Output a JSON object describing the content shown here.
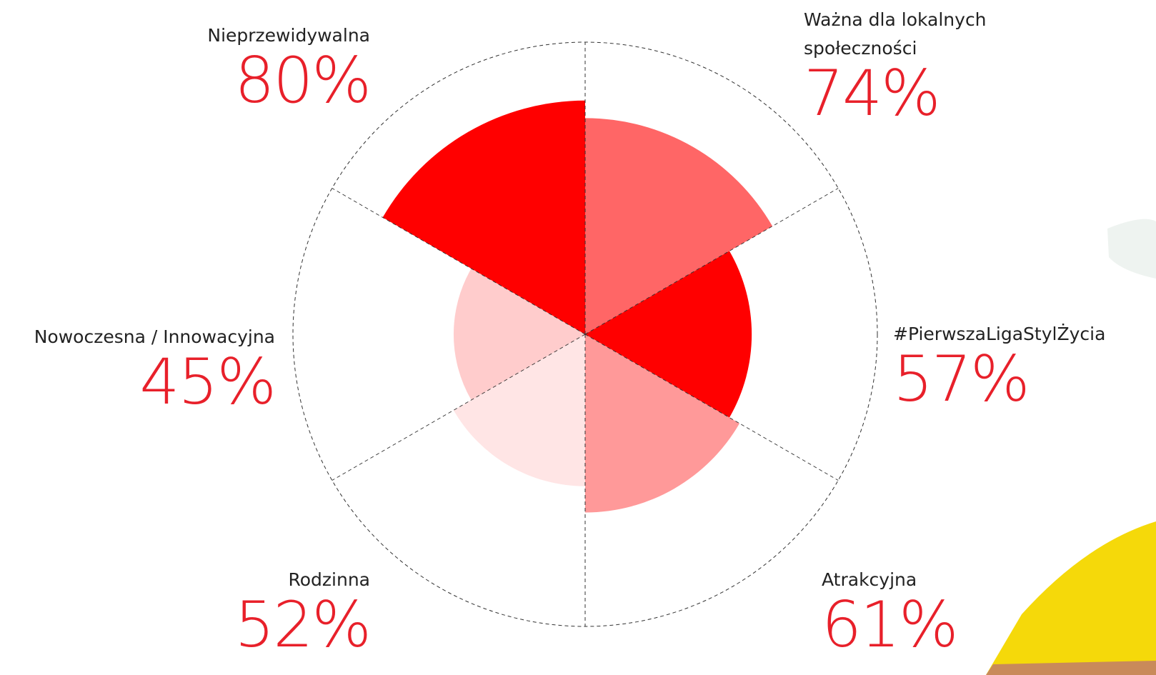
{
  "chart_data": {
    "type": "polar-area",
    "categories": [
      "Ważna dla lokalnych społeczności",
      "#PierwszaLigaStylŻycia",
      "Atrakcyjna",
      "Rodzinna",
      "Nowoczesna / Innowacyjna",
      "Nieprzewidywalna"
    ],
    "values": [
      74,
      57,
      61,
      52,
      45,
      80
    ],
    "value_labels": [
      "74%",
      "57%",
      "61%",
      "52%",
      "45%",
      "80%"
    ],
    "colors": [
      "#ff6666",
      "#ff0000",
      "#ff9999",
      "#ffe5e5",
      "#ffcccc",
      "#ff0000"
    ],
    "rlim": [
      0,
      100
    ]
  }
}
